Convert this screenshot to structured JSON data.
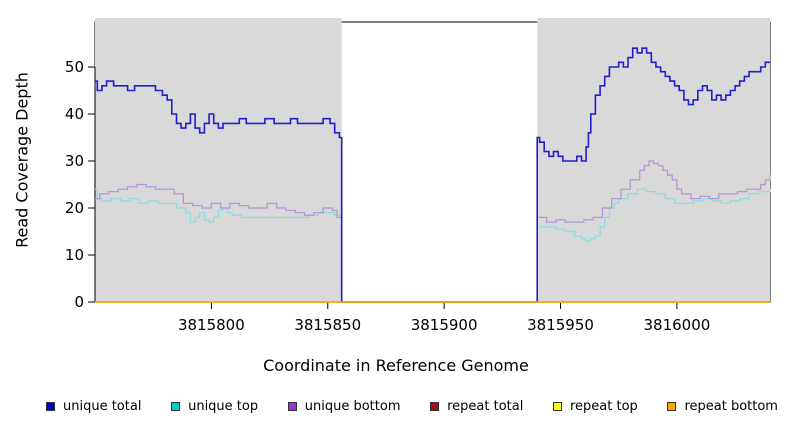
{
  "chart_data": {
    "type": "line",
    "title": "",
    "xlabel": "Coordinate in Reference Genome",
    "ylabel": "Read Coverage Depth",
    "xlim": [
      3815750,
      3816040
    ],
    "ylim": [
      0,
      59
    ],
    "x_ticks": [
      3815800,
      3815850,
      3815900,
      3815950,
      3816000
    ],
    "y_ticks": [
      0,
      10,
      20,
      30,
      40,
      50
    ],
    "grid": false,
    "legend_position": "bottom",
    "shaded_regions": [
      {
        "x0": 3815750,
        "x1": 3815856,
        "color": "#d9d9d9"
      },
      {
        "x0": 3815940,
        "x1": 3816040,
        "color": "#d9d9d9"
      }
    ],
    "series": [
      {
        "name": "unique top",
        "color": "#86dede",
        "width": 1.2,
        "points": [
          [
            3815750,
            24
          ],
          [
            3815751,
            22
          ],
          [
            3815753,
            21.5
          ],
          [
            3815757,
            22
          ],
          [
            3815761,
            21.5
          ],
          [
            3815765,
            22
          ],
          [
            3815769,
            21
          ],
          [
            3815773,
            21.5
          ],
          [
            3815777,
            21
          ],
          [
            3815781,
            21
          ],
          [
            3815785,
            20
          ],
          [
            3815789,
            19
          ],
          [
            3815791,
            17
          ],
          [
            3815793,
            18
          ],
          [
            3815795,
            19
          ],
          [
            3815797,
            17.5
          ],
          [
            3815799,
            17
          ],
          [
            3815801,
            18
          ],
          [
            3815803,
            19.5
          ],
          [
            3815805,
            20
          ],
          [
            3815807,
            19
          ],
          [
            3815809,
            18.5
          ],
          [
            3815813,
            18
          ],
          [
            3815818,
            18
          ],
          [
            3815823,
            18
          ],
          [
            3815828,
            18
          ],
          [
            3815833,
            18
          ],
          [
            3815838,
            18
          ],
          [
            3815842,
            18.5
          ],
          [
            3815846,
            19
          ],
          [
            3815850,
            19
          ],
          [
            3815853,
            18.5
          ],
          [
            3815855,
            18.5
          ],
          [
            3815856,
            0
          ],
          [
            3815939,
            0
          ],
          [
            3815940,
            16
          ],
          [
            3815944,
            16
          ],
          [
            3815948,
            15.5
          ],
          [
            3815952,
            15
          ],
          [
            3815956,
            14
          ],
          [
            3815959,
            13.5
          ],
          [
            3815961,
            13
          ],
          [
            3815963,
            13.5
          ],
          [
            3815965,
            14
          ],
          [
            3815967,
            16
          ],
          [
            3815969,
            18
          ],
          [
            3815971,
            20
          ],
          [
            3815973,
            21
          ],
          [
            3815975,
            22
          ],
          [
            3815979,
            23
          ],
          [
            3815983,
            24
          ],
          [
            3815987,
            23.5
          ],
          [
            3815991,
            23
          ],
          [
            3815995,
            22
          ],
          [
            3815999,
            21
          ],
          [
            3816003,
            21
          ],
          [
            3816007,
            21.5
          ],
          [
            3816011,
            22
          ],
          [
            3816015,
            21.5
          ],
          [
            3816019,
            21
          ],
          [
            3816023,
            21.5
          ],
          [
            3816027,
            22
          ],
          [
            3816031,
            23
          ],
          [
            3816035,
            23.5
          ],
          [
            3816040,
            24
          ]
        ]
      },
      {
        "name": "unique bottom",
        "color": "#b493d8",
        "width": 1.2,
        "points": [
          [
            3815750,
            22
          ],
          [
            3815752,
            23
          ],
          [
            3815756,
            23.5
          ],
          [
            3815760,
            24
          ],
          [
            3815764,
            24.5
          ],
          [
            3815768,
            25
          ],
          [
            3815772,
            24.5
          ],
          [
            3815776,
            24
          ],
          [
            3815780,
            24
          ],
          [
            3815784,
            23
          ],
          [
            3815788,
            21
          ],
          [
            3815792,
            20.5
          ],
          [
            3815796,
            20
          ],
          [
            3815800,
            21
          ],
          [
            3815804,
            20
          ],
          [
            3815808,
            21
          ],
          [
            3815812,
            20.5
          ],
          [
            3815816,
            20
          ],
          [
            3815820,
            20
          ],
          [
            3815824,
            21
          ],
          [
            3815828,
            20
          ],
          [
            3815832,
            19.5
          ],
          [
            3815836,
            19
          ],
          [
            3815840,
            18.5
          ],
          [
            3815844,
            19
          ],
          [
            3815848,
            20
          ],
          [
            3815852,
            19.5
          ],
          [
            3815854,
            18
          ],
          [
            3815856,
            0
          ],
          [
            3815939,
            0
          ],
          [
            3815940,
            18
          ],
          [
            3815944,
            17
          ],
          [
            3815948,
            17.5
          ],
          [
            3815952,
            17
          ],
          [
            3815956,
            17
          ],
          [
            3815960,
            17.5
          ],
          [
            3815964,
            18
          ],
          [
            3815968,
            20
          ],
          [
            3815972,
            22
          ],
          [
            3815976,
            24
          ],
          [
            3815980,
            26
          ],
          [
            3815984,
            28
          ],
          [
            3815986,
            29
          ],
          [
            3815988,
            30
          ],
          [
            3815990,
            29.5
          ],
          [
            3815992,
            29
          ],
          [
            3815994,
            28
          ],
          [
            3815996,
            27
          ],
          [
            3815998,
            26
          ],
          [
            3816000,
            24
          ],
          [
            3816002,
            23
          ],
          [
            3816006,
            22
          ],
          [
            3816010,
            22.5
          ],
          [
            3816014,
            22
          ],
          [
            3816018,
            23
          ],
          [
            3816022,
            23
          ],
          [
            3816026,
            23.5
          ],
          [
            3816030,
            24
          ],
          [
            3816034,
            24
          ],
          [
            3816036,
            25
          ],
          [
            3816038,
            26
          ],
          [
            3816040,
            27
          ]
        ]
      },
      {
        "name": "unique total",
        "color": "#2020c8",
        "width": 1.6,
        "points": [
          [
            3815750,
            47
          ],
          [
            3815751,
            45
          ],
          [
            3815753,
            46
          ],
          [
            3815755,
            47
          ],
          [
            3815758,
            46
          ],
          [
            3815762,
            46
          ],
          [
            3815764,
            45
          ],
          [
            3815767,
            46
          ],
          [
            3815772,
            46
          ],
          [
            3815776,
            45
          ],
          [
            3815779,
            44
          ],
          [
            3815781,
            43
          ],
          [
            3815783,
            40
          ],
          [
            3815785,
            38
          ],
          [
            3815787,
            37
          ],
          [
            3815789,
            38
          ],
          [
            3815791,
            40
          ],
          [
            3815793,
            37
          ],
          [
            3815795,
            36
          ],
          [
            3815797,
            38
          ],
          [
            3815799,
            40
          ],
          [
            3815801,
            38
          ],
          [
            3815803,
            37
          ],
          [
            3815805,
            38
          ],
          [
            3815809,
            38
          ],
          [
            3815812,
            39
          ],
          [
            3815815,
            38
          ],
          [
            3815819,
            38
          ],
          [
            3815823,
            39
          ],
          [
            3815827,
            38
          ],
          [
            3815831,
            38
          ],
          [
            3815834,
            39
          ],
          [
            3815837,
            38
          ],
          [
            3815841,
            38
          ],
          [
            3815845,
            38
          ],
          [
            3815848,
            39
          ],
          [
            3815851,
            38
          ],
          [
            3815853,
            36
          ],
          [
            3815855,
            35
          ],
          [
            3815856,
            0
          ],
          [
            3815939,
            0
          ],
          [
            3815940,
            35
          ],
          [
            3815941,
            34
          ],
          [
            3815943,
            32
          ],
          [
            3815945,
            31
          ],
          [
            3815947,
            32
          ],
          [
            3815949,
            31
          ],
          [
            3815951,
            30
          ],
          [
            3815955,
            30
          ],
          [
            3815957,
            31
          ],
          [
            3815959,
            30
          ],
          [
            3815961,
            33
          ],
          [
            3815962,
            36
          ],
          [
            3815963,
            40
          ],
          [
            3815965,
            44
          ],
          [
            3815967,
            46
          ],
          [
            3815969,
            48
          ],
          [
            3815971,
            50
          ],
          [
            3815973,
            50
          ],
          [
            3815975,
            51
          ],
          [
            3815977,
            50
          ],
          [
            3815979,
            52
          ],
          [
            3815981,
            54
          ],
          [
            3815983,
            53
          ],
          [
            3815985,
            54
          ],
          [
            3815987,
            53
          ],
          [
            3815989,
            51
          ],
          [
            3815991,
            50
          ],
          [
            3815993,
            49
          ],
          [
            3815995,
            48
          ],
          [
            3815997,
            47
          ],
          [
            3815999,
            46
          ],
          [
            3816001,
            45
          ],
          [
            3816003,
            43
          ],
          [
            3816005,
            42
          ],
          [
            3816007,
            43
          ],
          [
            3816009,
            45
          ],
          [
            3816011,
            46
          ],
          [
            3816013,
            45
          ],
          [
            3816015,
            43
          ],
          [
            3816017,
            44
          ],
          [
            3816019,
            43
          ],
          [
            3816021,
            44
          ],
          [
            3816023,
            45
          ],
          [
            3816025,
            46
          ],
          [
            3816027,
            47
          ],
          [
            3816029,
            48
          ],
          [
            3816031,
            49
          ],
          [
            3816034,
            49
          ],
          [
            3816036,
            50
          ],
          [
            3816038,
            51
          ],
          [
            3816040,
            51
          ]
        ]
      },
      {
        "name": "repeat total",
        "color": "#a01010",
        "width": 1.2,
        "points": [
          [
            3815750,
            0
          ],
          [
            3816040,
            0
          ]
        ]
      },
      {
        "name": "repeat top",
        "color": "#ffff00",
        "width": 1.2,
        "points": [
          [
            3815750,
            0
          ],
          [
            3816040,
            0
          ]
        ]
      },
      {
        "name": "repeat bottom",
        "color": "#ffa500",
        "width": 1.5,
        "points": [
          [
            3815750,
            0
          ],
          [
            3816040,
            0
          ]
        ]
      }
    ],
    "legend": [
      {
        "label": "unique total",
        "color": "#0000cc"
      },
      {
        "label": "unique top",
        "color": "#00cccc"
      },
      {
        "label": "unique bottom",
        "color": "#9933cc"
      },
      {
        "label": "repeat total",
        "color": "#a01010"
      },
      {
        "label": "repeat top",
        "color": "#ffff00"
      },
      {
        "label": "repeat bottom",
        "color": "#ffa500"
      }
    ]
  }
}
